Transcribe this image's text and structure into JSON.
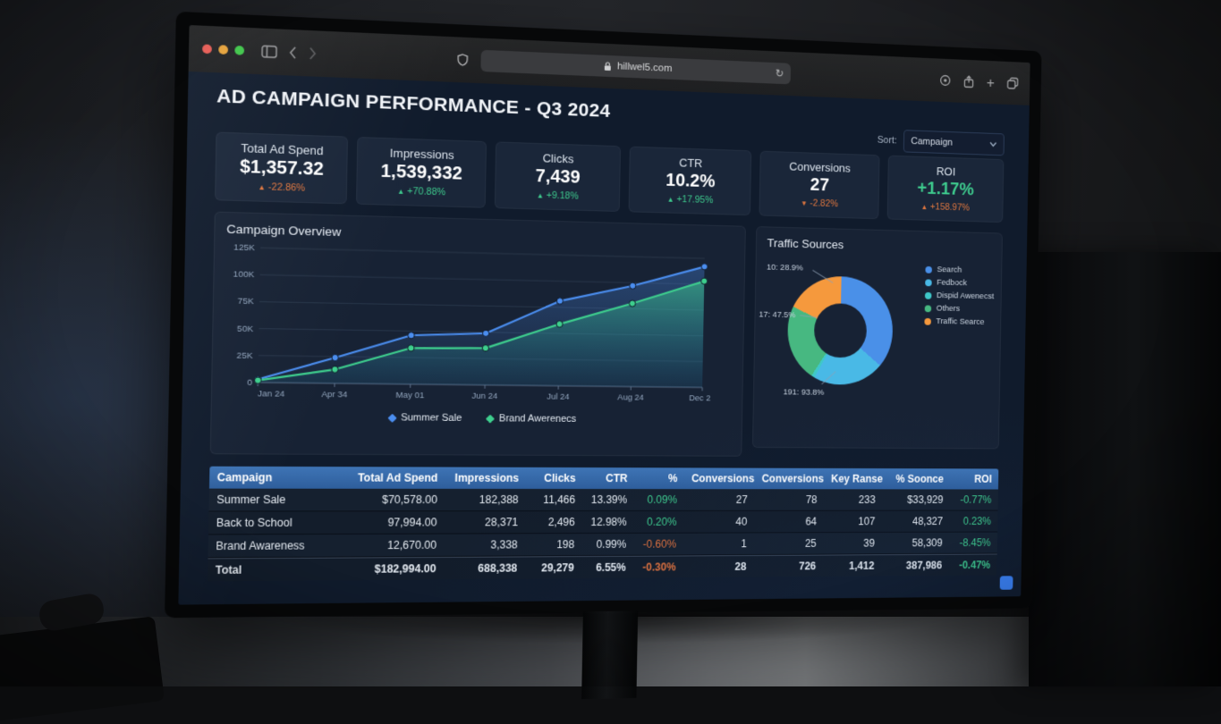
{
  "browser": {
    "url": "hillwel5.com",
    "reload_glyph": "↻",
    "plus_glyph": "+"
  },
  "header": {
    "title": "AD CAMPAIGN PERFORMANCE - Q3 2024",
    "sort_label": "Sort:",
    "sort_value": "Campaign"
  },
  "kpis": [
    {
      "label": "Total Ad Spend",
      "value": "$1,357.32",
      "arrow": "▲",
      "delta": "-22.86%",
      "delta_color": "orange",
      "value_color": "white"
    },
    {
      "label": "Impressions",
      "value": "1,539,332",
      "arrow": "▲",
      "delta": "+70.88%",
      "delta_color": "green",
      "value_color": "white"
    },
    {
      "label": "Clicks",
      "value": "7,439",
      "arrow": "▲",
      "delta": "+9.18%",
      "delta_color": "green",
      "value_color": "white"
    },
    {
      "label": "CTR",
      "value": "10.2%",
      "arrow": "▲",
      "delta": "+17.95%",
      "delta_color": "green",
      "value_color": "white"
    },
    {
      "label": "Conversions",
      "value": "27",
      "arrow": "▼",
      "delta": "-2.82%",
      "delta_color": "orange",
      "value_color": "white"
    },
    {
      "label": "ROI",
      "value": "+1.17%",
      "arrow": "▲",
      "delta": "+158.97%",
      "delta_color": "orange",
      "value_color": "green"
    }
  ],
  "chart_data": [
    {
      "type": "line",
      "title": "Campaign Overview",
      "x": [
        "Jan 24",
        "Apr 34",
        "May 01",
        "Jun 24",
        "Jul 24",
        "Aug 24",
        "Dec 24"
      ],
      "series": [
        {
          "name": "Summer Sale",
          "color": "#4b8ef0",
          "values": [
            3000,
            24000,
            46000,
            49000,
            81000,
            97000,
            117000
          ]
        },
        {
          "name": "Brand Awerenecs",
          "color": "#3ecf8e",
          "values": [
            2000,
            13000,
            34000,
            35000,
            59000,
            80000,
            103000
          ]
        }
      ],
      "ylim": [
        0,
        125000
      ],
      "yticks": [
        "0",
        "25K",
        "50K",
        "75K",
        "100K",
        "125K"
      ],
      "ytick_vals": [
        0,
        25000,
        50000,
        75000,
        100000,
        125000
      ],
      "grid": true,
      "legend_position": "bottom"
    },
    {
      "type": "pie",
      "donut": true,
      "title": "Traffic Sources",
      "slices": [
        {
          "label": "Search",
          "value": 36,
          "color": "#4a90e8"
        },
        {
          "label": "Fedbock",
          "value": 22,
          "color": "#49b9e6"
        },
        {
          "label": "Dispid Awenecst",
          "value": 1,
          "color": "#3fc8c9"
        },
        {
          "label": "Others",
          "value": 23,
          "color": "#47b881"
        },
        {
          "label": "Traffic Searce",
          "value": 18,
          "color": "#f5993d"
        }
      ],
      "annotations": [
        "10: 28.9%",
        "17: 47.5%",
        "191: 93.8%"
      ],
      "legend_position": "right"
    }
  ],
  "table": {
    "columns": [
      "Campaign",
      "Total Ad Spend",
      "Impressions",
      "Clicks",
      "CTR",
      "%",
      "Conversions",
      "Conversions",
      "Key Ranse",
      "% Soonce",
      "ROI"
    ],
    "rows": [
      {
        "cells": [
          "Summer Sale",
          "$70,578.00",
          "182,388",
          "11,466",
          "13.39%",
          "0.09%",
          "27",
          "78",
          "233",
          "$33,929",
          "-0.77%"
        ],
        "pct_color": "green",
        "roi_color": "green"
      },
      {
        "cells": [
          "Back to School",
          "97,994.00",
          "28,371",
          "2,496",
          "12.98%",
          "0.20%",
          "40",
          "64",
          "107",
          "48,327",
          "0.23%"
        ],
        "pct_color": "green",
        "roi_color": "green"
      },
      {
        "cells": [
          "Brand Awareness",
          "12,670.00",
          "3,338",
          "198",
          "0.99%",
          "-0.60%",
          "1",
          "25",
          "39",
          "58,309",
          "-8.45%"
        ],
        "pct_color": "orange",
        "roi_color": "green"
      }
    ],
    "total": {
      "cells": [
        "Total",
        "$182,994.00",
        "688,338",
        "29,279",
        "6.55%",
        "-0.30%",
        "28",
        "726",
        "1,412",
        "387,986",
        "-0.47%"
      ],
      "pct_color": "orange",
      "roi_color": "green"
    }
  }
}
